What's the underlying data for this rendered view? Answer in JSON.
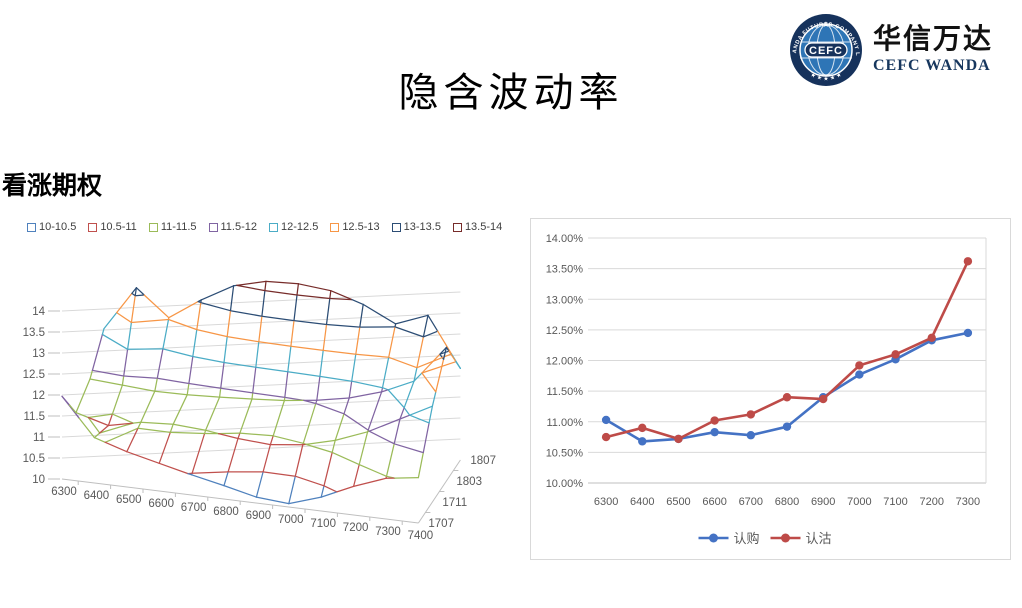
{
  "header": {
    "title": "隐含波动率",
    "logo": {
      "name_cn": "华信万达",
      "name_en": "CEFC WANDA",
      "badge_text": "CEFC",
      "ring_text": "CEFC WANDA FUTURES COMPANY LIMITED",
      "bottom_stars": "★ ★ ★ ★ ★",
      "top_star": "★",
      "brand_navy": "#16325C",
      "globe_blue": "#2E75B6"
    }
  },
  "section": {
    "label": "看涨期权"
  },
  "chart_data": [
    {
      "type": "surface3d-wireframe",
      "title": "",
      "x_categories": [
        "6300",
        "6400",
        "6500",
        "6600",
        "6700",
        "6800",
        "6900",
        "7000",
        "7100",
        "7200",
        "7300",
        "7400"
      ],
      "depth_categories": [
        "1707",
        "1711",
        "1803",
        "1807"
      ],
      "z_ticks": [
        "10",
        "10.5",
        "11",
        "11.5",
        "12",
        "12.5",
        "13",
        "13.5",
        "14"
      ],
      "zlim": [
        10,
        14
      ],
      "band_step": 0.5,
      "grid": true,
      "legend_position": "top",
      "legend": [
        {
          "label": "10-10.5",
          "color": "#4F81BD"
        },
        {
          "label": "10.5-11",
          "color": "#C0504D"
        },
        {
          "label": "11-11.5",
          "color": "#9BBB59"
        },
        {
          "label": "11.5-12",
          "color": "#8064A2"
        },
        {
          "label": "12-12.5",
          "color": "#4BACC6"
        },
        {
          "label": "12.5-13",
          "color": "#F79646"
        },
        {
          "label": "13-13.5",
          "color": "#2C4D75"
        },
        {
          "label": "13.5-14",
          "color": "#772C2A"
        }
      ],
      "series": [
        {
          "name": "1707",
          "values": [
            11.97,
            11.08,
            10.84,
            10.66,
            10.48,
            10.32,
            10.14,
            10.08,
            10.33,
            10.68,
            10.97,
            11.08
          ]
        },
        {
          "name": "1711",
          "values": [
            11.08,
            10.87,
            11.04,
            11.09,
            11.04,
            10.94,
            10.89,
            10.98,
            11.18,
            11.48,
            11.88,
            12.28
          ]
        },
        {
          "name": "1803",
          "values": [
            11.38,
            11.33,
            11.28,
            11.29,
            11.33,
            11.38,
            11.44,
            11.54,
            11.69,
            11.93,
            12.28,
            13.18
          ]
        },
        {
          "name": "1807",
          "values": [
            12.08,
            13.15,
            12.53,
            13.05,
            13.48,
            13.68,
            13.72,
            13.65,
            13.42,
            13.05,
            13.35,
            12.18
          ]
        }
      ]
    },
    {
      "type": "line",
      "title": "",
      "categories": [
        "6300",
        "6400",
        "6500",
        "6600",
        "6700",
        "6800",
        "6900",
        "7000",
        "7100",
        "7200",
        "7300"
      ],
      "y_ticks": [
        "10.00%",
        "10.50%",
        "11.00%",
        "11.50%",
        "12.00%",
        "12.50%",
        "13.00%",
        "13.50%",
        "14.00%"
      ],
      "ylim": [
        10,
        14
      ],
      "grid": true,
      "legend_position": "bottom",
      "series": [
        {
          "name": "认购",
          "color": "#4472C4",
          "values": [
            11.03,
            10.68,
            10.72,
            10.83,
            10.78,
            10.92,
            11.4,
            11.77,
            12.02,
            12.33,
            12.45
          ]
        },
        {
          "name": "认沽",
          "color": "#BE4B48",
          "values": [
            10.75,
            10.9,
            10.72,
            11.02,
            11.12,
            11.4,
            11.37,
            11.92,
            12.1,
            12.37,
            13.62
          ]
        }
      ],
      "axis_text_color": "#595959",
      "gridline_color": "#D9D9D9"
    }
  ]
}
